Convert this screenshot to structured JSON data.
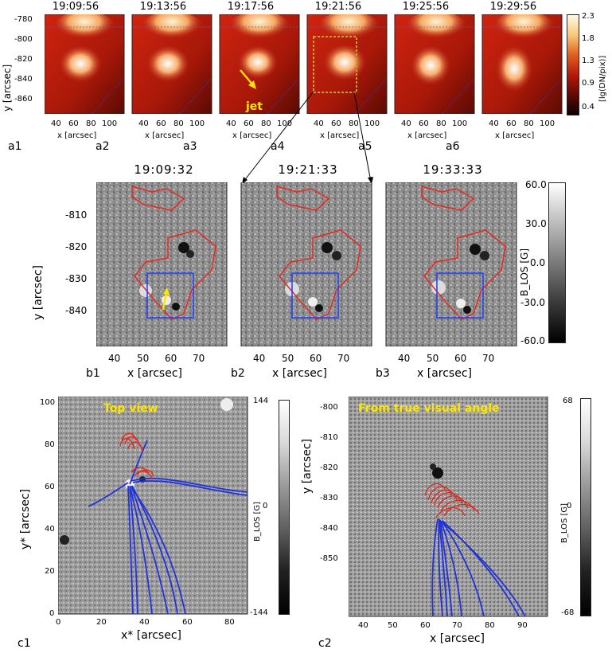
{
  "row_a": {
    "times": [
      "19:09:56",
      "19:13:56",
      "19:17:56",
      "19:21:56",
      "19:25:56",
      "19:29:56"
    ],
    "panel_labels": [
      "a1",
      "a2",
      "a3",
      "a4",
      "a5",
      "a6"
    ],
    "x_ticks": [
      "40",
      "60",
      "80",
      "100"
    ],
    "y_ticks": [
      "-780",
      "-800",
      "-820",
      "-840",
      "-860"
    ],
    "xlabel": "x [arcsec]",
    "ylabel": "y [arcsec]",
    "jet_label": "jet",
    "colorbar": {
      "label": "[lg(DN/pix)]",
      "ticks": [
        "2.3",
        "1.8",
        "1.3",
        "0.9",
        "0.4"
      ]
    }
  },
  "row_b": {
    "times": [
      "19:09:32",
      "19:21:33",
      "19:33:33"
    ],
    "panel_labels": [
      "b1",
      "b2",
      "b3"
    ],
    "x_ticks": [
      "40",
      "50",
      "60",
      "70"
    ],
    "y_ticks": [
      "-810",
      "-820",
      "-830",
      "-840"
    ],
    "xlabel": "x [arcsec]",
    "ylabel": "y [arcsec]",
    "colorbar": {
      "label": "B_LOS [G]",
      "ticks": [
        "60.0",
        "30.0",
        "0.0",
        "-30.0",
        "-60.0"
      ]
    }
  },
  "row_c": {
    "c1": {
      "panel_label": "c1",
      "title": "Top view",
      "x_ticks": [
        "0",
        "20",
        "40",
        "60",
        "80"
      ],
      "y_ticks": [
        "100",
        "80",
        "60",
        "40",
        "20",
        "0"
      ],
      "xlabel": "x* [arcsec]",
      "ylabel": "y* [arcsec]",
      "colorbar": {
        "label": "B_LOS [G]",
        "ticks": [
          "144",
          "0",
          "-144"
        ]
      }
    },
    "c2": {
      "panel_label": "c2",
      "title": "From true visual angle",
      "x_ticks": [
        "40",
        "50",
        "60",
        "70",
        "80",
        "90"
      ],
      "y_ticks": [
        "-800",
        "-810",
        "-820",
        "-830",
        "-840",
        "-850"
      ],
      "xlabel": "x [arcsec]",
      "ylabel": "y [arcsec]",
      "colorbar": {
        "label": "B_LOS [G]",
        "ticks": [
          "68",
          "0",
          "-68"
        ]
      }
    }
  },
  "colors": {
    "aia_red": "#b51a0a",
    "aia_bright": "#ffe8b0",
    "contour_red": "#e8281e",
    "box_blue": "#1a3cff",
    "arrow_yellow": "#ffe600",
    "box_dotted": "#c8a020",
    "fieldline_blue": "#2233dd",
    "fieldline_red": "#e0281e"
  }
}
